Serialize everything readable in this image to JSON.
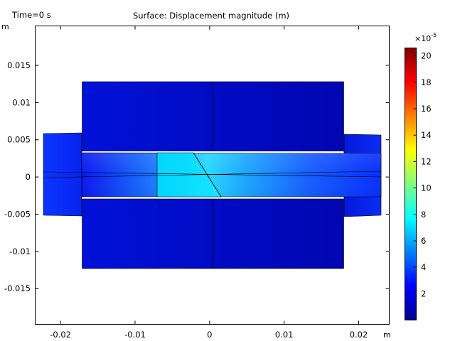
{
  "header": {
    "time_label": "Time=0 s",
    "title": "Surface: Displacement magnitude (m)"
  },
  "chart_data": {
    "type": "heatmap",
    "title": "Surface: Displacement magnitude (m)",
    "xlabel": "m",
    "ylabel": "m",
    "xlim": [
      -0.0234,
      0.0241
    ],
    "ylim": [
      -0.0198,
      0.0203
    ],
    "x_ticks": [
      -0.02,
      -0.01,
      0,
      0.01,
      0.02
    ],
    "x_tick_labels": [
      "-0.02",
      "-0.01",
      "0",
      "0.01",
      "0.02"
    ],
    "y_ticks": [
      0.015,
      0.01,
      0.005,
      0,
      -0.005,
      -0.01,
      -0.015
    ],
    "y_tick_labels": [
      "0.015",
      "0.01",
      "0.005",
      "0",
      "-0.005",
      "-0.01",
      "-0.015"
    ],
    "grid": false,
    "colorbar": {
      "exponent_label": "×10",
      "exponent": "-5",
      "min": 0,
      "max": 20.6,
      "ticks": [
        2,
        4,
        6,
        8,
        10,
        12,
        14,
        16,
        18,
        20
      ],
      "tick_labels": [
        "2",
        "4",
        "6",
        "8",
        "10",
        "12",
        "14",
        "16",
        "18",
        "20"
      ],
      "colormap": "jet",
      "colors": [
        "#00008f",
        "#0000ff",
        "#00ffff",
        "#ffff00",
        "#ff0000",
        "#800000"
      ],
      "position": "right"
    },
    "regions": [
      {
        "name": "upper-block",
        "x": [
          -0.0171,
          0.0179
        ],
        "y": [
          0.0032,
          0.0128
        ],
        "value_left": 1.2,
        "value_right": 0.9
      },
      {
        "name": "lower-block",
        "x": [
          -0.0171,
          0.0179
        ],
        "y": [
          -0.0122,
          -0.0028
        ],
        "value_left": 1.2,
        "value_right": 0.9
      },
      {
        "name": "left-arm",
        "x": [
          -0.0222,
          -0.0171
        ],
        "y": [
          -0.0052,
          0.0058
        ],
        "value": 1.8
      },
      {
        "name": "right-arm",
        "x": [
          0.0179,
          0.023
        ],
        "y": [
          -0.0052,
          0.0056
        ],
        "value": 1.3
      },
      {
        "name": "middle-beam",
        "x": [
          -0.0171,
          0.023
        ],
        "y": [
          -0.0026,
          0.0033
        ],
        "value_min": 3.0,
        "value_max": 6.0
      },
      {
        "name": "center-insert",
        "x": [
          -0.007,
          0.0016
        ],
        "y": [
          -0.0026,
          0.0033
        ],
        "value": 6.4
      }
    ]
  }
}
